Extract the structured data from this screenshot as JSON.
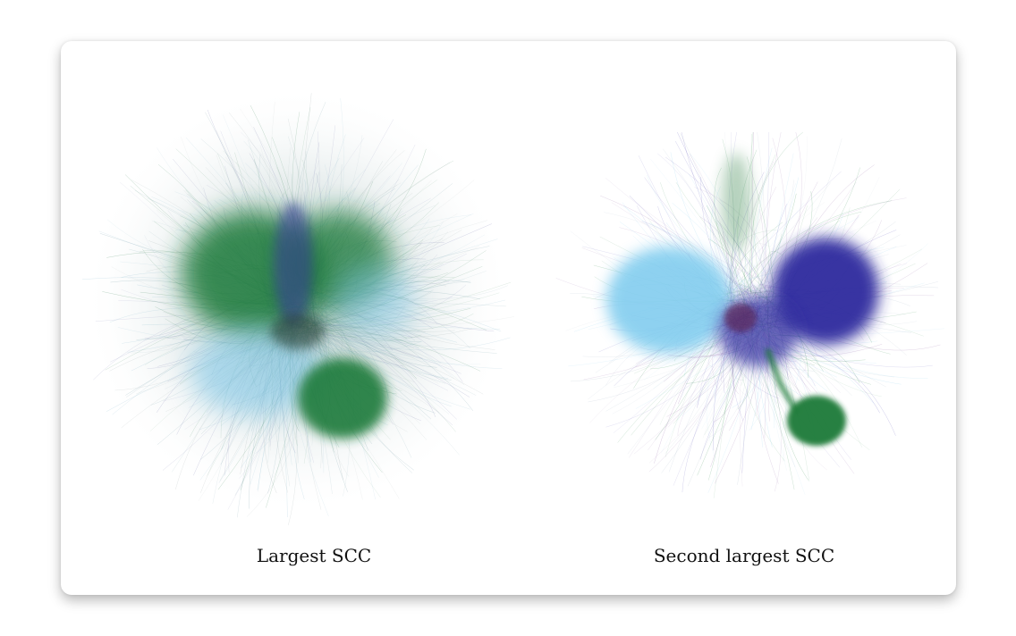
{
  "figure": {
    "panels": [
      {
        "caption": "Largest SCC",
        "clusters": [
          {
            "color": "#1f7a3a",
            "name": "green-cluster-large"
          },
          {
            "color": "#1f7a3a",
            "name": "green-cluster-lower"
          },
          {
            "color": "#7ec8ea",
            "name": "lightblue-cluster"
          },
          {
            "color": "#3a3a9e",
            "name": "purple-cluster"
          }
        ]
      },
      {
        "caption": "Second largest SCC",
        "clusters": [
          {
            "color": "#82cdef",
            "name": "lightblue-cluster"
          },
          {
            "color": "#2e2a9e",
            "name": "purple-cluster"
          },
          {
            "color": "#1c7a38",
            "name": "green-cluster"
          },
          {
            "color": "#5a9a6a",
            "name": "green-plume"
          }
        ]
      }
    ]
  }
}
